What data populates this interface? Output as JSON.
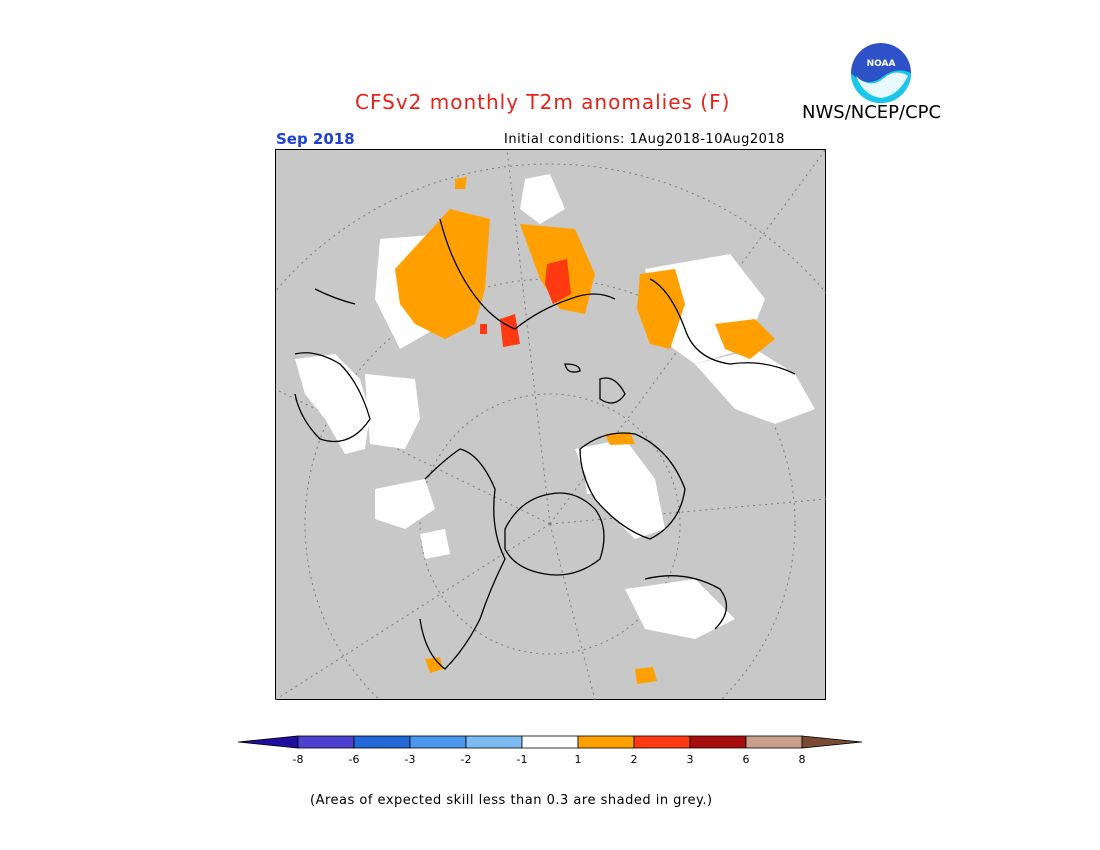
{
  "header": {
    "title": "CFSv2 monthly T2m anomalies (F)",
    "agency": "NWS/NCEP/CPC",
    "logo_text": "NOAA",
    "valid_month": "Sep 2018",
    "initial_conditions": "Initial conditions: 1Aug2018-10Aug2018"
  },
  "map": {
    "projection": "north polar stereographic",
    "land_fill": "#c8c8c8",
    "colors": {
      "neutral": "#ffffff",
      "warm_1_2": "#ffa000",
      "warm_2_3": "#ff3a12",
      "grey": "#c8c8c8"
    }
  },
  "colorbar": {
    "tick_labels": [
      "-8",
      "-6",
      "-3",
      "-2",
      "-1",
      "1",
      "2",
      "3",
      "6",
      "8"
    ],
    "colors": [
      "#1f0fa0",
      "#4b40d0",
      "#2268d8",
      "#4a96ec",
      "#7cbcf2",
      "#ffffff",
      "#ffa000",
      "#ff3a12",
      "#a80d0d",
      "#caa08c",
      "#7a4a34"
    ]
  },
  "footnote": "(Areas of expected skill less than 0.3 are shaded in grey.)"
}
